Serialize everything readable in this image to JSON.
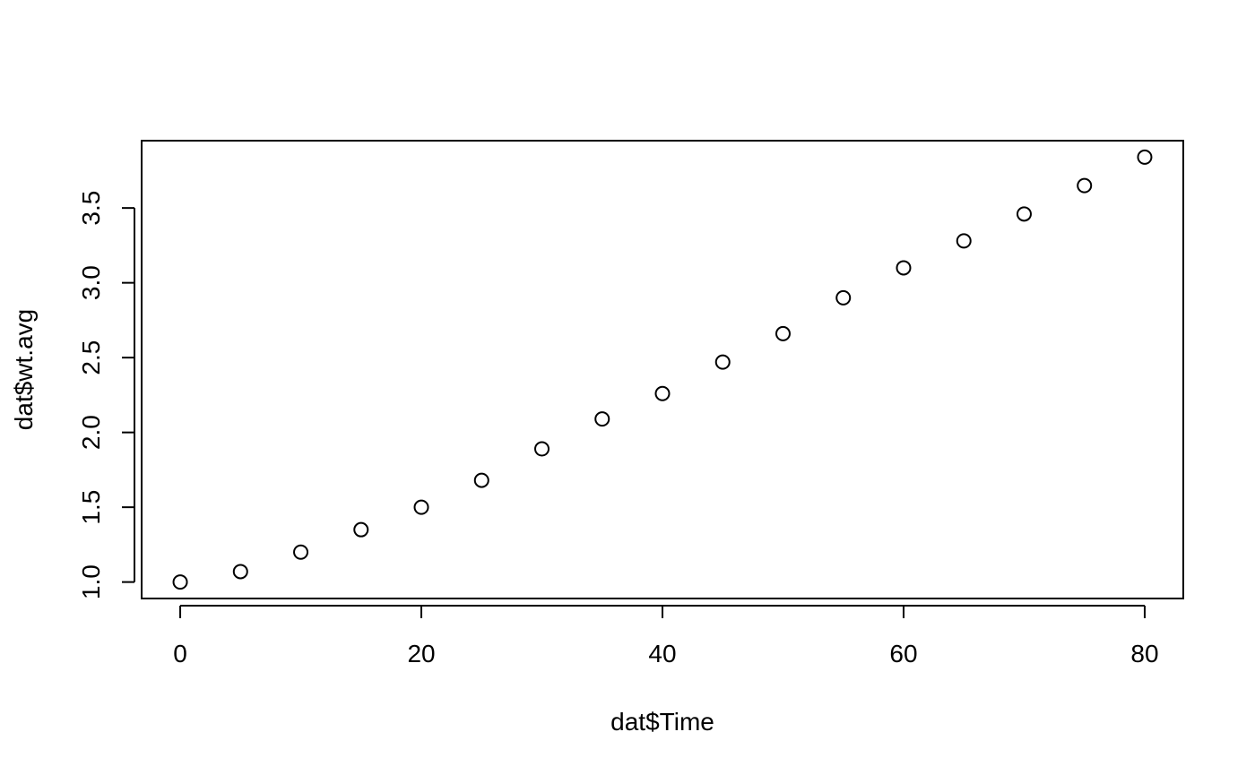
{
  "chart_data": {
    "type": "scatter",
    "title": "",
    "xlabel": "dat$Time",
    "ylabel": "dat$wt.avg",
    "xlim": [
      -3.2,
      83.2
    ],
    "ylim": [
      0.89,
      3.95
    ],
    "xticks": [
      0,
      20,
      40,
      60,
      80
    ],
    "xtick_labels": [
      "0",
      "20",
      "40",
      "60",
      "80"
    ],
    "yticks": [
      1.0,
      1.5,
      2.0,
      2.5,
      3.0,
      3.5
    ],
    "ytick_labels": [
      "1.0",
      "1.5",
      "2.0",
      "2.5",
      "3.0",
      "3.5"
    ],
    "grid": false,
    "legend": "none",
    "marker": "open-circle",
    "marker_color": "#000000",
    "series": [
      {
        "x": [
          0,
          5,
          10,
          15,
          20,
          25,
          30,
          35,
          40,
          45,
          50,
          55,
          60,
          65,
          70,
          75,
          80
        ],
        "y": [
          1.0,
          1.07,
          1.2,
          1.35,
          1.5,
          1.68,
          1.89,
          2.09,
          2.26,
          2.47,
          2.66,
          2.9,
          3.1,
          3.28,
          3.46,
          3.65,
          3.84
        ]
      }
    ]
  }
}
